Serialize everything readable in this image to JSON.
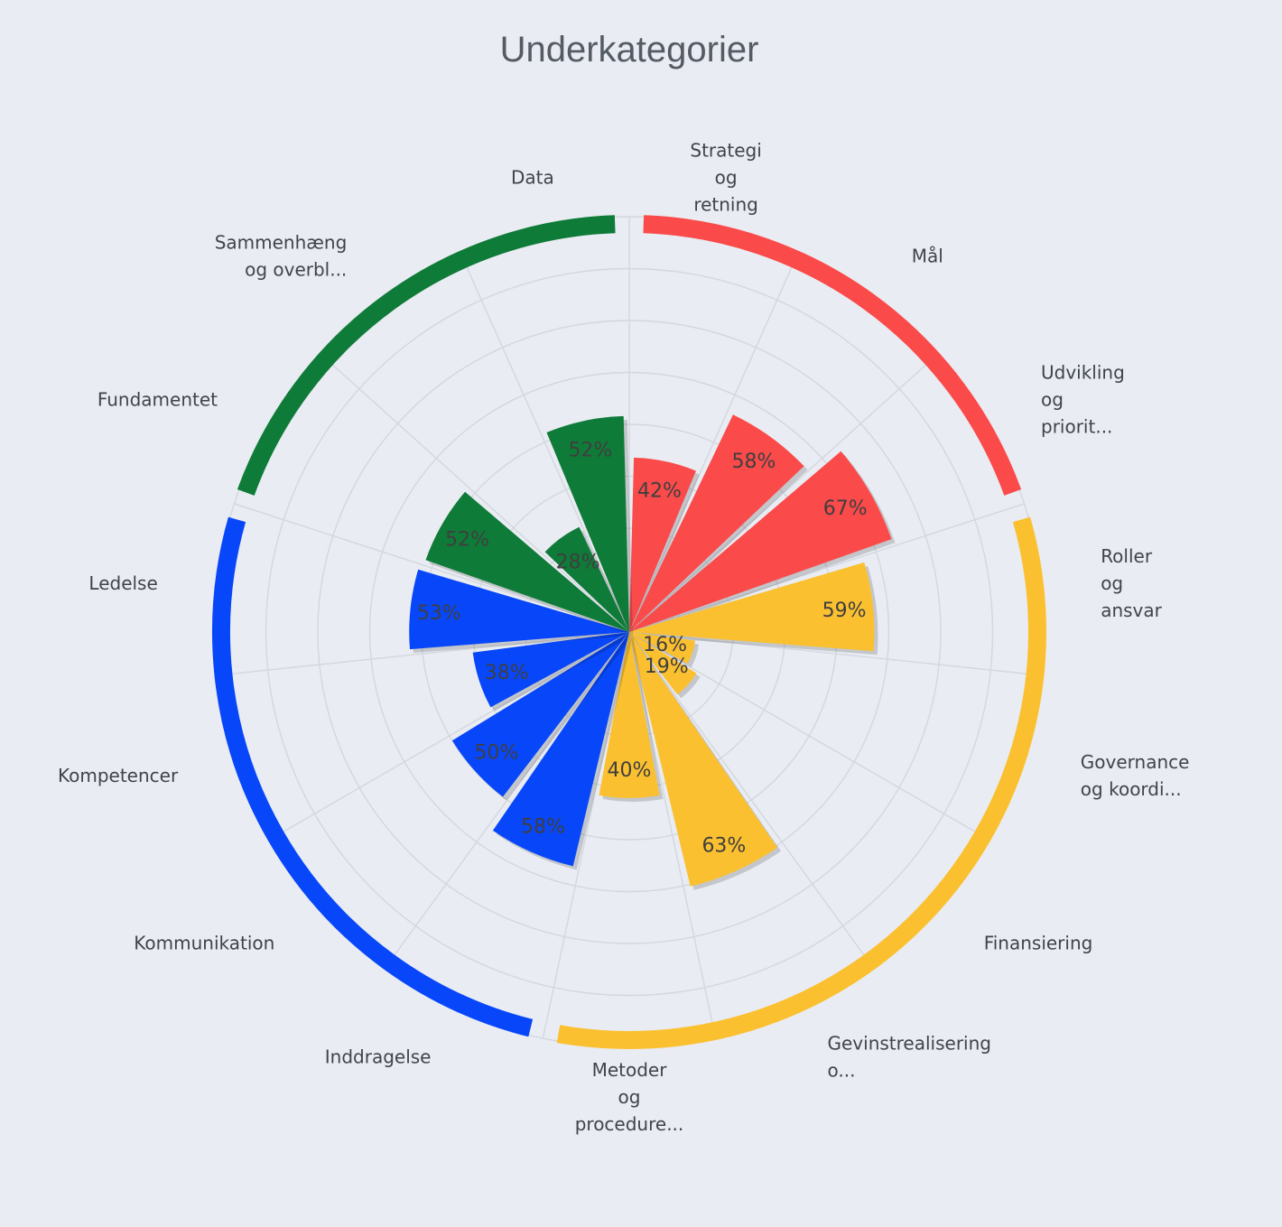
{
  "chart_data": {
    "type": "polar-bar",
    "title": "Underkategorier",
    "ylim": [
      0,
      100
    ],
    "grid": true,
    "colors": {
      "red": "#fa4a4a",
      "yellow": "#fbc030",
      "blue": "#0847f9",
      "green": "#0f7b38"
    },
    "categories": [
      "Strategi og retning",
      "Mål",
      "Udvikling og priorit...",
      "Roller og ansvar",
      "Governance og koordi...",
      "Finansiering",
      "Gevinstrealisering o...",
      "Metoder og procedure...",
      "Inddragelse",
      "Kommunikation",
      "Kompetencer",
      "Ledelse",
      "Fundamentet",
      "Sammenhæng og overbl...",
      "Data"
    ],
    "values": [
      42,
      58,
      67,
      59,
      16,
      19,
      63,
      40,
      58,
      50,
      38,
      53,
      52,
      28,
      52
    ],
    "value_labels": [
      "42%",
      "58%",
      "67%",
      "59%",
      "16%",
      "19%",
      "63%",
      "40%",
      "58%",
      "50%",
      "38%",
      "53%",
      "52%",
      "28%",
      "52%"
    ],
    "bar_colors": [
      "red",
      "red",
      "red",
      "yellow",
      "yellow",
      "yellow",
      "yellow",
      "yellow",
      "blue",
      "blue",
      "blue",
      "blue",
      "green",
      "green",
      "green"
    ],
    "groups": [
      {
        "color": "red",
        "categories": [
          "Strategi og retning",
          "Mål",
          "Udvikling og priorit..."
        ]
      },
      {
        "color": "yellow",
        "categories": [
          "Roller og ansvar",
          "Governance og koordi...",
          "Finansiering",
          "Gevinstrealisering o...",
          "Metoder og procedure..."
        ]
      },
      {
        "color": "blue",
        "categories": [
          "Inddragelse",
          "Kommunikation",
          "Kompetencer",
          "Ledelse"
        ]
      },
      {
        "color": "green",
        "categories": [
          "Fundamentet",
          "Sammenhæng og overbl...",
          "Data"
        ]
      }
    ]
  }
}
